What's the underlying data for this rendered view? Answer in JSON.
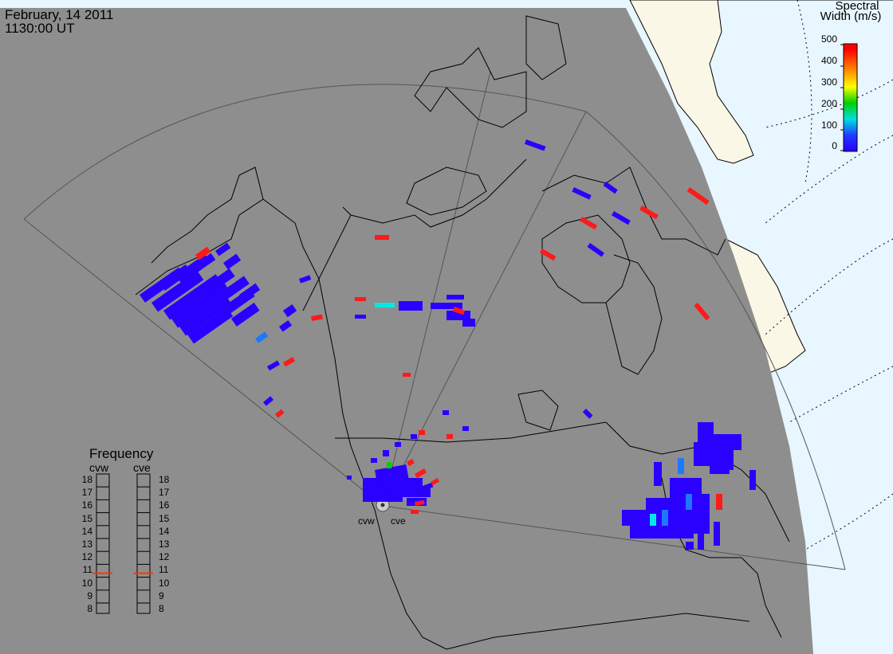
{
  "header": {
    "date": "February, 14 2011",
    "time": "1130:00 UT"
  },
  "colorbar": {
    "title_line1": "Spectral",
    "title_line2": "Width (m/s)",
    "ticks": [
      "500",
      "400",
      "300",
      "200",
      "100",
      "0"
    ],
    "range": [
      0,
      500
    ],
    "colors": [
      "#ff0000",
      "#ff8c00",
      "#ffff00",
      "#00d000",
      "#00e0e0",
      "#1e3cff",
      "#2a00ff"
    ]
  },
  "frequency": {
    "title": "Frequency",
    "radars": [
      {
        "name": "cvw",
        "value_mhz": 10.8
      },
      {
        "name": "cve",
        "value_mhz": 10.8
      }
    ],
    "scale": [
      "18",
      "17",
      "16",
      "15",
      "14",
      "13",
      "12",
      "11",
      "10",
      "9",
      "8"
    ],
    "indicator_color": "#ff3300"
  },
  "map": {
    "ocean_color": "#e8f6ff",
    "land_color": "#fbf7e6",
    "nightside_color": "#8e8e8e",
    "radar_sites": [
      "cvw",
      "cve"
    ]
  }
}
